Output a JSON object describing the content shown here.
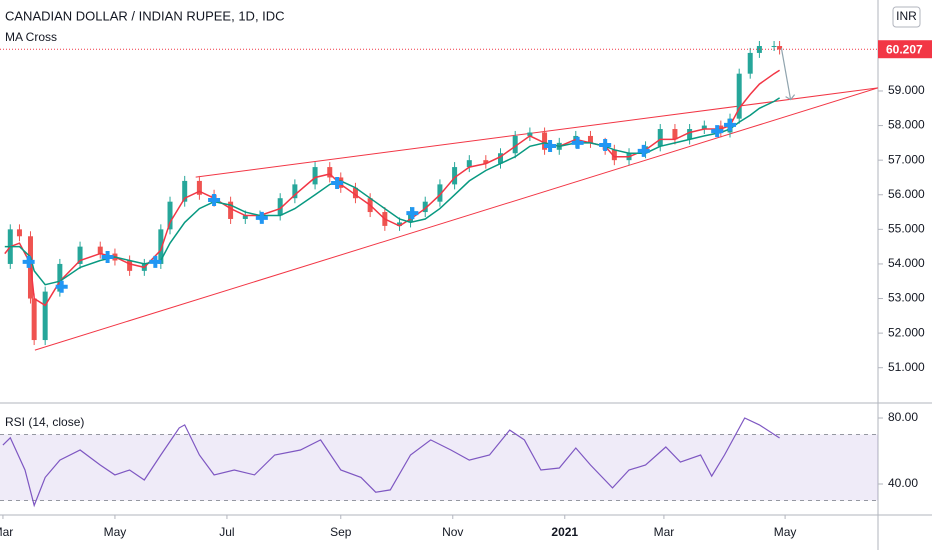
{
  "chart_data": [
    {
      "type": "candlestick",
      "title": "CANADIAN DOLLAR / INDIAN RUPEE, 1D, IDC",
      "subtitle": "MA Cross",
      "currency": "INR",
      "xlim": [
        -1.6,
        476.6
      ],
      "ylim": [
        49.98,
        61.63
      ],
      "yticks": [
        {
          "value": 51,
          "label": "51.000"
        },
        {
          "value": 52,
          "label": "52.000"
        },
        {
          "value": 53,
          "label": "53.000"
        },
        {
          "value": 54,
          "label": "54.000"
        },
        {
          "value": 55,
          "label": "55.000"
        },
        {
          "value": 56,
          "label": "56.000"
        },
        {
          "value": 57,
          "label": "57.000"
        },
        {
          "value": 58,
          "label": "58.000"
        },
        {
          "value": 59,
          "label": "59.000"
        }
      ],
      "last_price": 60.207,
      "last_price_color": "#f23645",
      "x": [
        1,
        4,
        9,
        15,
        17,
        23,
        31,
        42,
        53,
        61,
        69,
        77,
        86,
        91,
        99,
        107,
        115,
        124,
        132,
        140,
        151,
        159,
        170,
        178,
        184,
        192,
        200,
        208,
        216,
        222,
        230,
        238,
        246,
        254,
        263,
        271,
        279,
        287,
        295,
        303,
        312,
        320,
        328,
        333,
        341,
        350,
        358,
        366,
        374,
        382,
        391,
        396,
        401,
        407,
        412,
        420,
        423
      ],
      "series": [
        {
          "color": "#26a69a",
          "down_color": "#ef5350",
          "values": [
            54.0,
            55.0,
            54.8,
            53.0,
            51.8,
            53.2,
            54.0,
            54.5,
            54.3,
            54.1,
            53.8,
            54.0,
            55.0,
            55.8,
            56.4,
            56.0,
            55.8,
            55.3,
            55.4,
            55.4,
            55.9,
            56.3,
            56.8,
            56.5,
            56.2,
            55.9,
            55.5,
            55.1,
            55.2,
            55.5,
            55.8,
            56.3,
            56.8,
            57.0,
            56.9,
            57.2,
            57.7,
            57.8,
            57.3,
            57.5,
            57.7,
            57.5,
            57.3,
            57.0,
            57.2,
            57.4,
            57.9,
            57.6,
            57.9,
            58.0,
            57.8,
            58.2,
            59.5,
            60.1,
            60.3,
            60.3,
            60.2
          ]
        },
        {
          "color": "#f23645",
          "values": [
            54.3,
            54.5,
            54.6,
            54.0,
            53.0,
            52.8,
            53.5,
            54.1,
            54.3,
            54.2,
            54.0,
            53.9,
            54.4,
            55.2,
            55.9,
            56.1,
            55.9,
            55.6,
            55.4,
            55.4,
            55.6,
            56.0,
            56.5,
            56.6,
            56.3,
            56.0,
            55.7,
            55.3,
            55.1,
            55.3,
            55.6,
            56.0,
            56.5,
            56.8,
            56.9,
            57.1,
            57.4,
            57.7,
            57.5,
            57.4,
            57.6,
            57.5,
            57.4,
            57.1,
            57.1,
            57.3,
            57.6,
            57.6,
            57.8,
            57.9,
            57.9,
            58.0,
            58.5,
            58.9,
            59.2,
            59.5,
            59.6
          ]
        },
        {
          "color": "#089981",
          "values": [
            54.5,
            54.5,
            54.5,
            54.2,
            53.8,
            53.4,
            53.5,
            53.9,
            54.1,
            54.2,
            54.1,
            54.0,
            54.1,
            54.6,
            55.2,
            55.6,
            55.8,
            55.7,
            55.5,
            55.4,
            55.4,
            55.6,
            56.0,
            56.3,
            56.4,
            56.2,
            55.9,
            55.6,
            55.3,
            55.2,
            55.3,
            55.6,
            56.0,
            56.4,
            56.7,
            56.9,
            57.1,
            57.4,
            57.5,
            57.4,
            57.5,
            57.5,
            57.4,
            57.3,
            57.2,
            57.2,
            57.4,
            57.5,
            57.6,
            57.7,
            57.8,
            57.9,
            58.1,
            58.3,
            58.5,
            58.7,
            58.8
          ]
        }
      ],
      "crosses": {
        "color": "#2196f3",
        "x": [
          14,
          32,
          57,
          83,
          115,
          141,
          182,
          223,
          298,
          313,
          328,
          349,
          389,
          396
        ],
        "y": [
          54.06,
          53.34,
          54.2,
          54.06,
          55.85,
          55.33,
          56.34,
          55.47,
          57.41,
          57.5,
          57.44,
          57.27,
          57.84,
          58.02
        ]
      },
      "trendlines": {
        "color": "#f23645",
        "lines": [
          {
            "x": [
              105,
              476.6
            ],
            "y": [
              56.51,
              59.09
            ]
          },
          {
            "x": [
              17.4,
              476.6
            ],
            "y": [
              51.51,
              59.09
            ]
          }
        ]
      },
      "projection": {
        "color": "#90a4ae",
        "x": [
          424,
          429
        ],
        "y": [
          60.24,
          58.75
        ]
      }
    },
    {
      "type": "line",
      "title": "RSI (14, close)",
      "xlim": [
        -1.6,
        476.6
      ],
      "ylim": [
        21.2,
        89.1
      ],
      "yticks": [
        {
          "value": 40,
          "label": "40.00"
        },
        {
          "value": 80,
          "label": "80.00"
        }
      ],
      "band": [
        30,
        70
      ],
      "xticks": [
        {
          "value": 0,
          "label": "Mar"
        },
        {
          "value": 61,
          "label": "May"
        },
        {
          "value": 122,
          "label": "Jul"
        },
        {
          "value": 184,
          "label": "Sep"
        },
        {
          "value": 245,
          "label": "Nov"
        },
        {
          "value": 306,
          "label": "2021"
        },
        {
          "value": 360,
          "label": "Mar"
        },
        {
          "value": 426,
          "label": "May"
        }
      ],
      "x": [
        0,
        4,
        12,
        17,
        23,
        31,
        42,
        53,
        61,
        69,
        77,
        86,
        96,
        99,
        107,
        115,
        126,
        137,
        148,
        162,
        173,
        184,
        195,
        203,
        211,
        222,
        233,
        244,
        254,
        265,
        276,
        284,
        293,
        303,
        312,
        320,
        332,
        341,
        350,
        361,
        369,
        380,
        386,
        393,
        404,
        412,
        423
      ],
      "series": [
        {
          "color": "#7e57c2",
          "values": [
            63.6,
            68,
            48.5,
            27,
            44,
            54.5,
            60.6,
            51.5,
            45.5,
            48.5,
            42.4,
            57.6,
            74,
            75.8,
            57.6,
            45.5,
            48.5,
            45.5,
            57.6,
            60.6,
            66.7,
            48.5,
            44,
            35,
            36.4,
            57.6,
            66.7,
            60.6,
            54.5,
            57.6,
            72.7,
            66.7,
            48.5,
            49.7,
            61.8,
            51.5,
            37.6,
            48.5,
            51.5,
            62.4,
            53.3,
            57.6,
            44.8,
            57.6,
            80,
            75.8,
            67.9
          ]
        }
      ]
    }
  ]
}
